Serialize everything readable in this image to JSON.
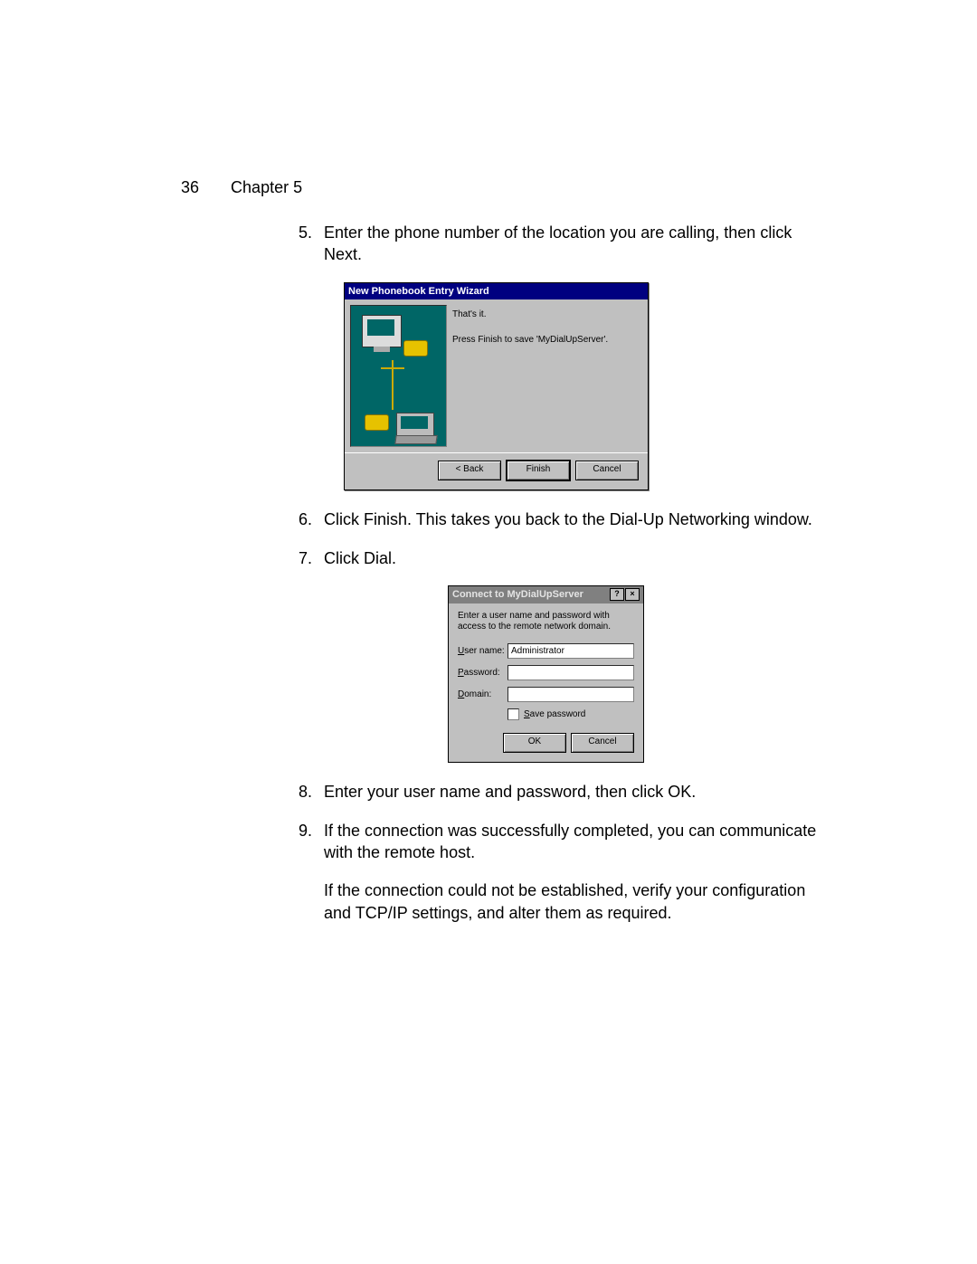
{
  "header": {
    "page_number": "36",
    "chapter_label": "Chapter 5"
  },
  "steps": {
    "s5": {
      "num": "5.",
      "text": "Enter the phone number of the location you are calling, then click Next."
    },
    "s6": {
      "num": "6.",
      "text": "Click Finish. This takes you back to the Dial-Up Networking window."
    },
    "s7": {
      "num": "7.",
      "text": "Click Dial."
    },
    "s8": {
      "num": "8.",
      "text": "Enter your user name and password, then click OK."
    },
    "s9": {
      "num": "9.",
      "text": "If the connection was successfully completed, you can communicate with the remote host."
    },
    "s9b": "If the connection could not be established, verify your configuration and TCP/IP settings, and alter them as required."
  },
  "wizard": {
    "title": "New Phonebook Entry Wizard",
    "line1": "That's it.",
    "line2": "Press Finish to save 'MyDialUpServer'.",
    "buttons": {
      "back": "< Back",
      "finish": "Finish",
      "cancel": "Cancel"
    }
  },
  "connect": {
    "title": "Connect to MyDialUpServer",
    "help_ctrl": "?",
    "close_ctrl": "×",
    "instruction": "Enter a user name and password with access to the remote network domain.",
    "labels": {
      "user": "User name:",
      "password": "Password:",
      "domain": "Domain:",
      "save": "Save password"
    },
    "username_value": "Administrator",
    "password_value": "",
    "domain_value": "",
    "buttons": {
      "ok": "OK",
      "cancel": "Cancel"
    }
  },
  "colors": {
    "titlebar_active": "#000080",
    "titlebar_inactive": "#808080",
    "win_face": "#c0c0c0",
    "wizard_art_bg": "#006666",
    "page_bg": "#ffffff"
  }
}
